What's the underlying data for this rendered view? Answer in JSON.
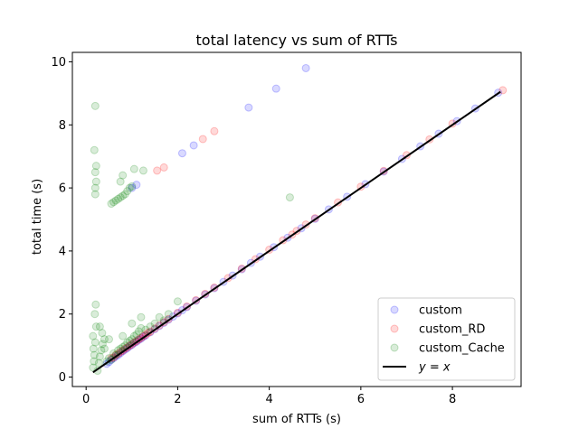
{
  "chart_data": {
    "type": "scatter",
    "title": "total latency vs sum of RTTs",
    "xlabel": "sum of RTTs (s)",
    "ylabel": "total time (s)",
    "xlim": [
      -0.3,
      9.5
    ],
    "ylim": [
      -0.3,
      10.3
    ],
    "xticks": [
      0,
      2,
      4,
      6,
      8
    ],
    "yticks": [
      0,
      2,
      4,
      6,
      8,
      10
    ],
    "grid": false,
    "legend_position": "bottom-right",
    "series": [
      {
        "name": "custom",
        "color": "#0000ff",
        "marker": "circle",
        "alpha": 0.15,
        "points": [
          [
            0.45,
            0.42
          ],
          [
            0.5,
            0.48
          ],
          [
            0.55,
            0.55
          ],
          [
            0.6,
            0.6
          ],
          [
            0.65,
            0.66
          ],
          [
            0.7,
            0.7
          ],
          [
            0.75,
            0.76
          ],
          [
            0.8,
            0.82
          ],
          [
            0.85,
            0.87
          ],
          [
            0.9,
            0.92
          ],
          [
            0.95,
            0.98
          ],
          [
            1.0,
            1.02
          ],
          [
            1.05,
            1.08
          ],
          [
            1.1,
            1.12
          ],
          [
            1.15,
            1.18
          ],
          [
            1.2,
            1.22
          ],
          [
            1.25,
            1.28
          ],
          [
            1.3,
            1.32
          ],
          [
            1.4,
            1.42
          ],
          [
            1.5,
            1.52
          ],
          [
            1.6,
            1.62
          ],
          [
            1.7,
            1.72
          ],
          [
            1.8,
            1.82
          ],
          [
            1.9,
            1.92
          ],
          [
            2.0,
            2.02
          ],
          [
            2.1,
            2.12
          ],
          [
            2.2,
            2.22
          ],
          [
            2.4,
            2.42
          ],
          [
            2.6,
            2.62
          ],
          [
            2.8,
            2.82
          ],
          [
            3.0,
            3.02
          ],
          [
            3.2,
            3.22
          ],
          [
            3.4,
            3.42
          ],
          [
            3.6,
            3.62
          ],
          [
            3.8,
            3.82
          ],
          [
            4.1,
            4.12
          ],
          [
            4.4,
            4.42
          ],
          [
            4.7,
            4.72
          ],
          [
            5.0,
            5.02
          ],
          [
            5.3,
            5.32
          ],
          [
            5.7,
            5.72
          ],
          [
            6.1,
            6.12
          ],
          [
            6.5,
            6.52
          ],
          [
            6.9,
            6.92
          ],
          [
            7.3,
            7.32
          ],
          [
            7.7,
            7.72
          ],
          [
            8.1,
            8.12
          ],
          [
            8.5,
            8.52
          ],
          [
            9.0,
            9.02
          ],
          [
            1.0,
            6.0
          ],
          [
            1.1,
            6.1
          ],
          [
            2.1,
            7.1
          ],
          [
            2.35,
            7.35
          ],
          [
            3.55,
            8.55
          ],
          [
            4.15,
            9.15
          ],
          [
            4.8,
            9.8
          ]
        ]
      },
      {
        "name": "custom_RD",
        "color": "#ff0000",
        "marker": "circle",
        "alpha": 0.15,
        "points": [
          [
            0.55,
            0.6
          ],
          [
            0.6,
            0.62
          ],
          [
            0.65,
            0.7
          ],
          [
            0.7,
            0.74
          ],
          [
            0.75,
            0.8
          ],
          [
            0.8,
            0.84
          ],
          [
            0.85,
            0.9
          ],
          [
            0.9,
            0.94
          ],
          [
            0.95,
            1.0
          ],
          [
            1.0,
            1.04
          ],
          [
            1.05,
            1.1
          ],
          [
            1.1,
            1.14
          ],
          [
            1.15,
            1.2
          ],
          [
            1.2,
            1.24
          ],
          [
            1.25,
            1.3
          ],
          [
            1.3,
            1.34
          ],
          [
            1.35,
            1.4
          ],
          [
            1.4,
            1.44
          ],
          [
            1.5,
            1.54
          ],
          [
            1.6,
            1.64
          ],
          [
            1.7,
            1.74
          ],
          [
            1.8,
            1.84
          ],
          [
            2.0,
            2.04
          ],
          [
            2.2,
            2.24
          ],
          [
            2.4,
            2.44
          ],
          [
            2.6,
            2.64
          ],
          [
            2.8,
            2.84
          ],
          [
            3.1,
            3.14
          ],
          [
            3.4,
            3.44
          ],
          [
            3.7,
            3.74
          ],
          [
            4.0,
            4.04
          ],
          [
            4.3,
            4.34
          ],
          [
            4.5,
            4.52
          ],
          [
            4.6,
            4.64
          ],
          [
            4.8,
            4.84
          ],
          [
            5.0,
            5.04
          ],
          [
            5.5,
            5.54
          ],
          [
            6.0,
            6.04
          ],
          [
            6.5,
            6.54
          ],
          [
            7.0,
            7.04
          ],
          [
            7.5,
            7.54
          ],
          [
            8.0,
            8.04
          ],
          [
            9.1,
            9.1
          ],
          [
            1.55,
            6.55
          ],
          [
            1.7,
            6.65
          ],
          [
            2.55,
            7.55
          ],
          [
            2.8,
            7.8
          ]
        ]
      },
      {
        "name": "custom_Cache",
        "color": "#008000",
        "marker": "circle",
        "alpha": 0.15,
        "points": [
          [
            0.15,
            0.3
          ],
          [
            0.17,
            0.5
          ],
          [
            0.18,
            0.7
          ],
          [
            0.16,
            0.9
          ],
          [
            0.2,
            1.1
          ],
          [
            0.15,
            1.3
          ],
          [
            0.22,
            1.6
          ],
          [
            0.19,
            2.0
          ],
          [
            0.21,
            2.3
          ],
          [
            0.25,
            0.2
          ],
          [
            0.28,
            0.45
          ],
          [
            0.3,
            0.65
          ],
          [
            0.33,
            0.85
          ],
          [
            0.36,
            1.05
          ],
          [
            0.4,
            1.2
          ],
          [
            0.35,
            1.4
          ],
          [
            0.45,
            0.5
          ],
          [
            0.5,
            0.6
          ],
          [
            0.55,
            0.55
          ],
          [
            0.6,
            0.75
          ],
          [
            0.65,
            0.7
          ],
          [
            0.7,
            0.85
          ],
          [
            0.75,
            0.9
          ],
          [
            0.8,
            0.95
          ],
          [
            0.85,
            1.0
          ],
          [
            0.9,
            1.1
          ],
          [
            0.95,
            1.15
          ],
          [
            1.0,
            1.2
          ],
          [
            1.05,
            1.3
          ],
          [
            1.1,
            1.35
          ],
          [
            1.15,
            1.45
          ],
          [
            1.2,
            1.55
          ],
          [
            1.3,
            1.5
          ],
          [
            1.4,
            1.6
          ],
          [
            1.5,
            1.7
          ],
          [
            1.6,
            1.9
          ],
          [
            1.7,
            1.8
          ],
          [
            1.8,
            2.0
          ],
          [
            2.0,
            2.4
          ],
          [
            1.0,
            1.7
          ],
          [
            0.3,
            1.6
          ],
          [
            0.5,
            1.2
          ],
          [
            0.4,
            0.9
          ],
          [
            0.8,
            1.3
          ],
          [
            1.2,
            1.9
          ],
          [
            0.2,
            5.8
          ],
          [
            0.2,
            6.0
          ],
          [
            0.22,
            6.2
          ],
          [
            0.2,
            6.5
          ],
          [
            0.22,
            6.7
          ],
          [
            0.18,
            7.2
          ],
          [
            0.2,
            8.6
          ],
          [
            0.55,
            5.5
          ],
          [
            0.6,
            5.55
          ],
          [
            0.65,
            5.6
          ],
          [
            0.7,
            5.65
          ],
          [
            0.75,
            5.7
          ],
          [
            0.8,
            5.75
          ],
          [
            0.85,
            5.8
          ],
          [
            0.9,
            5.9
          ],
          [
            0.95,
            6.0
          ],
          [
            1.0,
            6.05
          ],
          [
            0.75,
            6.2
          ],
          [
            0.8,
            6.4
          ],
          [
            1.05,
            6.6
          ],
          [
            1.25,
            6.55
          ],
          [
            4.45,
            5.7
          ]
        ]
      }
    ],
    "reference_line": {
      "name": "y = x",
      "color": "#000000",
      "x": [
        0.15,
        9.05
      ],
      "y": [
        0.15,
        9.05
      ]
    }
  }
}
